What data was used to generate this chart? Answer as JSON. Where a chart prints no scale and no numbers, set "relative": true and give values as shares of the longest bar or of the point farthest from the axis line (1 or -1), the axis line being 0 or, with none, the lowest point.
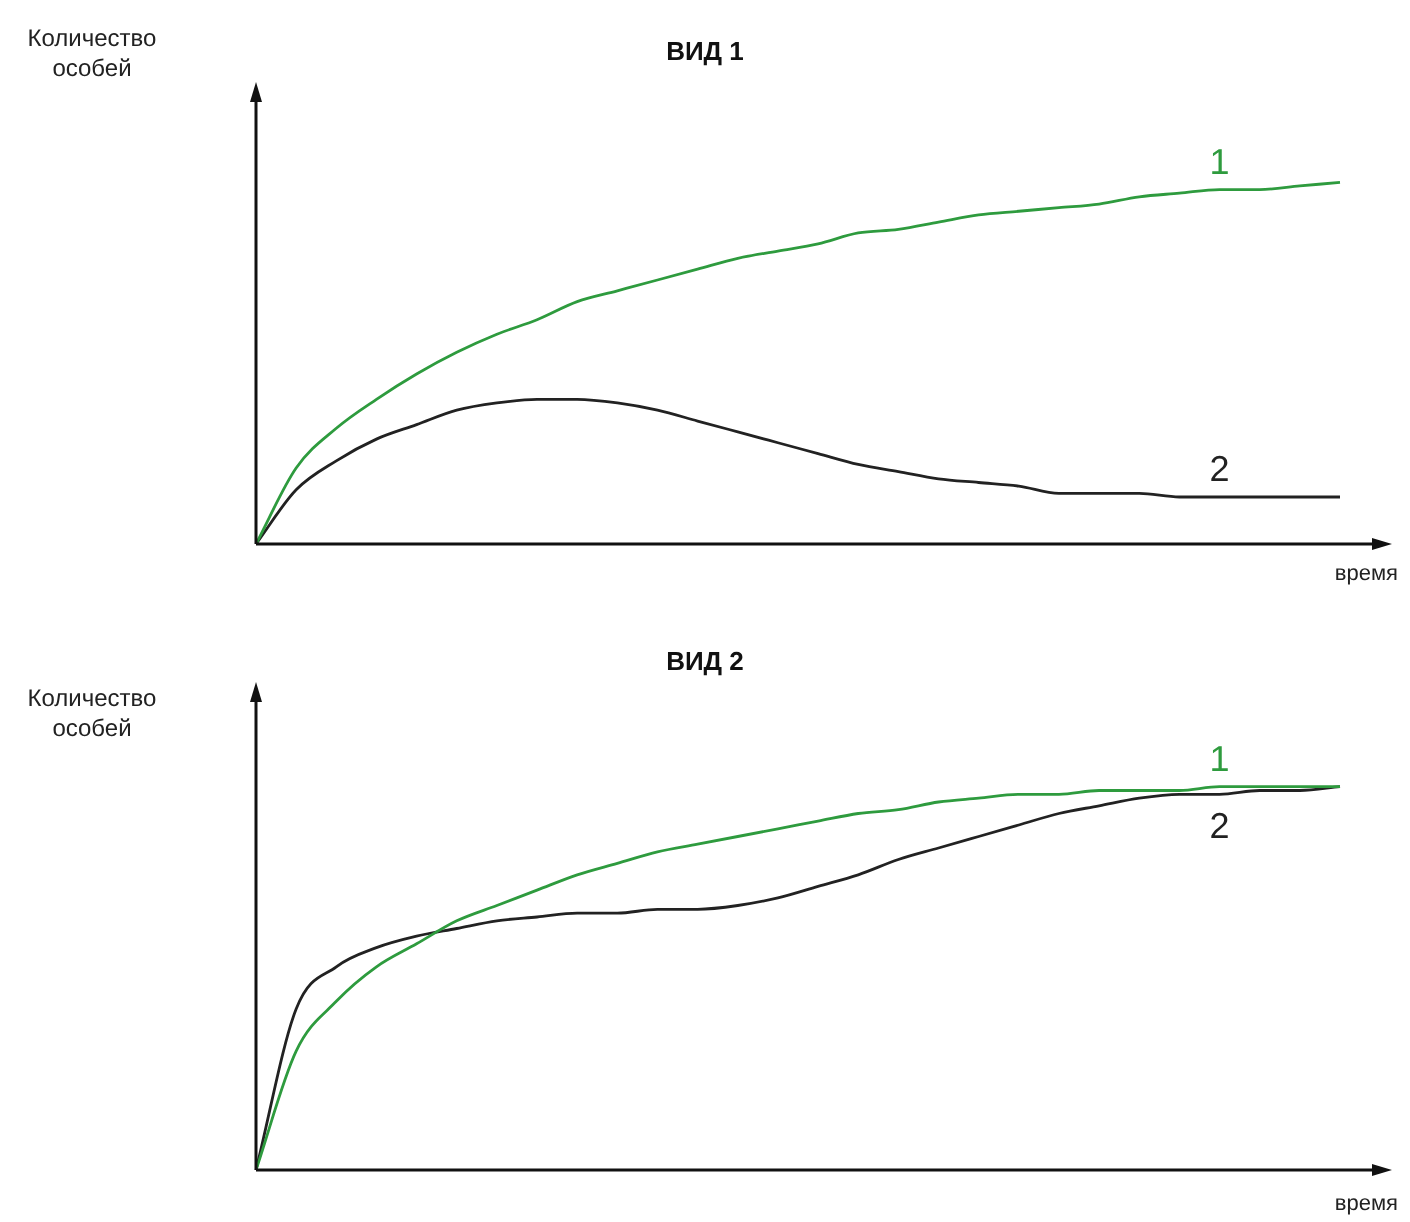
{
  "chart_data": [
    {
      "type": "line",
      "title": "ВИД 1",
      "ylabel": "Количество особей",
      "xlabel": "время",
      "relative": true,
      "marker": "none",
      "categories": [
        null,
        null,
        null,
        null,
        null,
        null,
        null,
        null,
        null,
        null,
        null,
        null,
        null,
        null,
        null,
        null,
        null,
        null,
        null,
        null,
        null,
        null,
        null,
        null,
        null,
        null,
        null,
        null
      ],
      "series": [
        {
          "name": "1",
          "color": "#2e9b3e",
          "values": [
            0,
            0.21,
            0.32,
            0.4,
            0.47,
            0.53,
            0.58,
            0.62,
            0.67,
            0.7,
            0.73,
            0.76,
            0.79,
            0.81,
            0.83,
            0.86,
            0.87,
            0.89,
            0.91,
            0.92,
            0.93,
            0.94,
            0.96,
            0.97,
            0.98,
            0.98,
            0.99,
            1
          ]
        },
        {
          "name": "2",
          "color": "#222222",
          "values": [
            0,
            0.15,
            0.23,
            0.29,
            0.33,
            0.37,
            0.39,
            0.4,
            0.4,
            0.39,
            0.37,
            0.34,
            0.31,
            0.28,
            0.25,
            0.22,
            0.2,
            0.18,
            0.17,
            0.16,
            0.14,
            0.14,
            0.14,
            0.13,
            0.13,
            0.13,
            0.13,
            0.13
          ]
        }
      ]
    },
    {
      "type": "line",
      "title": "ВИД 2",
      "ylabel": "Количество особей",
      "xlabel": "время",
      "relative": true,
      "marker": "none",
      "categories": [
        null,
        null,
        null,
        null,
        null,
        null,
        null,
        null,
        null,
        null,
        null,
        null,
        null,
        null,
        null,
        null,
        null,
        null,
        null,
        null,
        null,
        null,
        null,
        null,
        null,
        null,
        null,
        null
      ],
      "series": [
        {
          "name": "1",
          "color": "#2e9b3e",
          "values": [
            0,
            0.31,
            0.44,
            0.53,
            0.59,
            0.65,
            0.69,
            0.73,
            0.77,
            0.8,
            0.83,
            0.85,
            0.87,
            0.89,
            0.91,
            0.93,
            0.94,
            0.96,
            0.97,
            0.98,
            0.98,
            0.99,
            0.99,
            0.99,
            1,
            1,
            1,
            1
          ]
        },
        {
          "name": "2",
          "color": "#222222",
          "values": [
            0,
            0.42,
            0.53,
            0.58,
            0.61,
            0.63,
            0.65,
            0.66,
            0.67,
            0.67,
            0.68,
            0.68,
            0.69,
            0.71,
            0.74,
            0.77,
            0.81,
            0.84,
            0.87,
            0.9,
            0.93,
            0.95,
            0.97,
            0.98,
            0.98,
            0.99,
            0.99,
            1
          ]
        }
      ]
    }
  ]
}
